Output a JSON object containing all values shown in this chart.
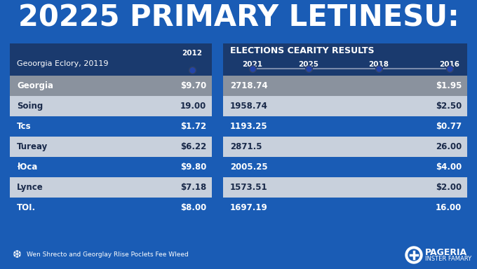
{
  "title": "20225 PRIMARY LETINESU:",
  "bg_color": "#1a5cb5",
  "left_table": {
    "header_bg": "#1a3a6e",
    "header_text": "Geoorgia Eclory, 20119",
    "header_year": "2012",
    "rows": [
      {
        "label": "Georgia",
        "value": "$9.70",
        "highlight": true
      },
      {
        "label": "Soing",
        "value": "19.00",
        "highlight": false
      },
      {
        "label": "Tcs",
        "value": "$1.72",
        "highlight": false
      },
      {
        "label": "Tureay",
        "value": "$6.22",
        "highlight": false
      },
      {
        "label": "łOca",
        "value": "$9.80",
        "highlight": false
      },
      {
        "label": "Lynce",
        "value": "$7.18",
        "highlight": false
      },
      {
        "label": "TOI.",
        "value": "$8.00",
        "highlight": false
      }
    ]
  },
  "right_table": {
    "header_bg": "#1a3a6e",
    "header_title": "ELECTIONS CEARITY RESULTS",
    "header_cols": [
      "2021",
      "2025",
      "2018",
      "2016"
    ],
    "rows": [
      {
        "col1": "2718.74",
        "col4": "$1.95",
        "highlight": true
      },
      {
        "col1": "1958.74",
        "col4": "$2.50",
        "highlight": false
      },
      {
        "col1": "1193.25",
        "col4": "$0.77",
        "highlight": false
      },
      {
        "col1": "2871.5",
        "col4": "26.00",
        "highlight": false
      },
      {
        "col1": "2005.25",
        "col4": "$4.00",
        "highlight": false
      },
      {
        "col1": "1573.51",
        "col4": "$2.00",
        "highlight": false
      },
      {
        "col1": "1697.19",
        "col4": "16.00",
        "highlight": false
      }
    ]
  },
  "footer_text": "Wen Shrecto and Georglay Rlise Poclets Fee Wleed",
  "brand_name": "PAGERIA",
  "brand_sub": "INSTER FAMARY",
  "highlight_color": "#8a929e",
  "light_row_color": "#c8d0dc",
  "dark_row_color": "#1a5cb5",
  "dot_color": "#1a3a6e",
  "line_color": "#7a8aaa",
  "text_on_light": "#1a2a4a",
  "text_on_dark": "#ffffff",
  "text_on_highlight": "#ffffff"
}
